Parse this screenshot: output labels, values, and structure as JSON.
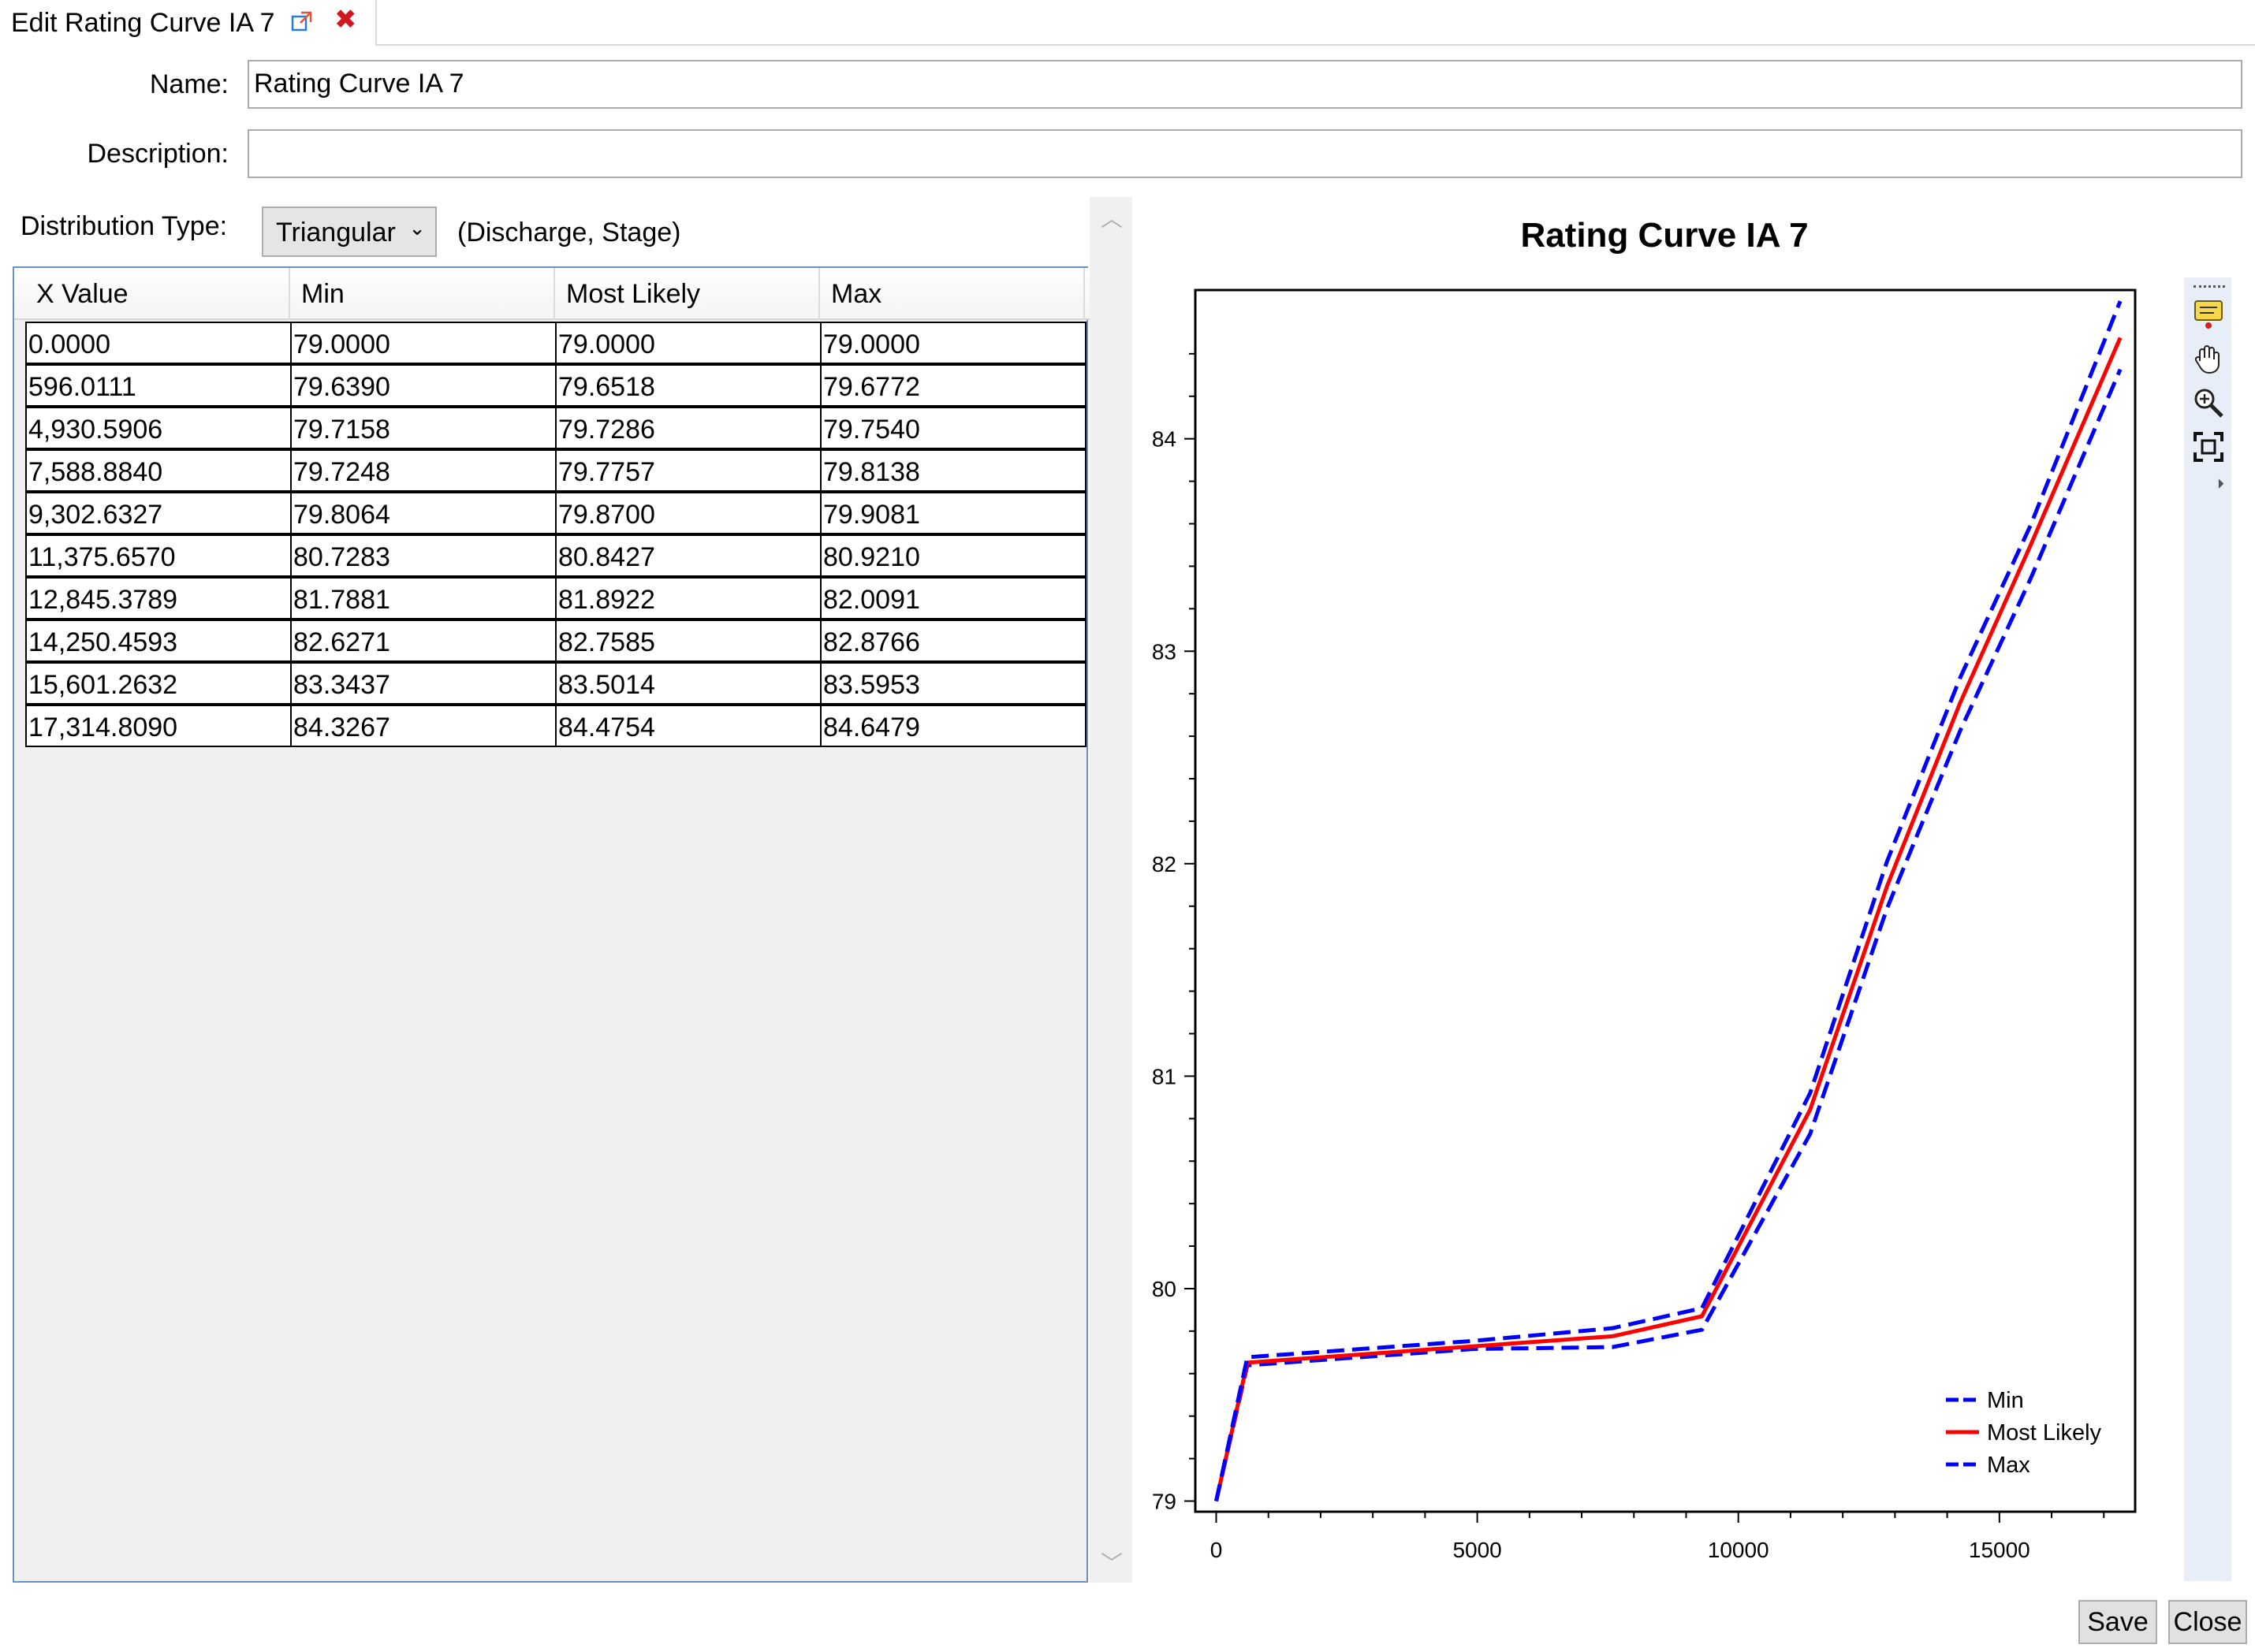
{
  "tab": {
    "title": "Edit Rating Curve IA 7"
  },
  "form": {
    "name_label": "Name:",
    "name_value": "Rating Curve IA 7",
    "description_label": "Description:",
    "description_value": "",
    "distribution_label": "Distribution Type:",
    "distribution_value": "Triangular",
    "distribution_note": "(Discharge, Stage)"
  },
  "table": {
    "columns": [
      "X Value",
      "Min",
      "Most Likely",
      "Max"
    ],
    "rows": [
      [
        "0.0000",
        "79.0000",
        "79.0000",
        "79.0000"
      ],
      [
        "596.0111",
        "79.6390",
        "79.6518",
        "79.6772"
      ],
      [
        "4,930.5906",
        "79.7158",
        "79.7286",
        "79.7540"
      ],
      [
        "7,588.8840",
        "79.7248",
        "79.7757",
        "79.8138"
      ],
      [
        "9,302.6327",
        "79.8064",
        "79.8700",
        "79.9081"
      ],
      [
        "11,375.6570",
        "80.7283",
        "80.8427",
        "80.9210"
      ],
      [
        "12,845.3789",
        "81.7881",
        "81.8922",
        "82.0091"
      ],
      [
        "14,250.4593",
        "82.6271",
        "82.7585",
        "82.8766"
      ],
      [
        "15,601.2632",
        "83.3437",
        "83.5014",
        "83.5953"
      ],
      [
        "17,314.8090",
        "84.3267",
        "84.4754",
        "84.6479"
      ]
    ]
  },
  "chart_data": {
    "type": "line",
    "title": "Rating Curve IA 7",
    "xlabel": "",
    "ylabel": "",
    "xlim": [
      -400,
      17600
    ],
    "ylim": [
      78.95,
      84.7
    ],
    "x_ticks": [
      0,
      5000,
      10000,
      15000
    ],
    "y_ticks": [
      79,
      80,
      81,
      82,
      83,
      84
    ],
    "legend_position": "bottom-right",
    "x": [
      0,
      596.0111,
      4930.5906,
      7588.884,
      9302.6327,
      11375.657,
      12845.3789,
      14250.4593,
      15601.2632,
      17314.809
    ],
    "series": [
      {
        "name": "Min",
        "color": "#0000ff",
        "dash": "dashed",
        "values": [
          79.0,
          79.639,
          79.7158,
          79.7248,
          79.8064,
          80.7283,
          81.7881,
          82.6271,
          83.3437,
          84.3267
        ]
      },
      {
        "name": "Most Likely",
        "color": "#ff0000",
        "dash": "solid",
        "values": [
          79.0,
          79.6518,
          79.7286,
          79.7757,
          79.87,
          80.8427,
          81.8922,
          82.7585,
          83.5014,
          84.4754
        ]
      },
      {
        "name": "Max",
        "color": "#0000ff",
        "dash": "dashed",
        "values": [
          79.0,
          79.6772,
          79.754,
          79.8138,
          79.9081,
          80.921,
          82.0091,
          82.8766,
          83.5953,
          84.6479
        ]
      }
    ]
  },
  "toolbar": {
    "icons": [
      "annotation-icon",
      "pan-hand-icon",
      "zoom-icon",
      "fit-extent-icon"
    ]
  },
  "buttons": {
    "save": "Save",
    "close": "Close"
  }
}
